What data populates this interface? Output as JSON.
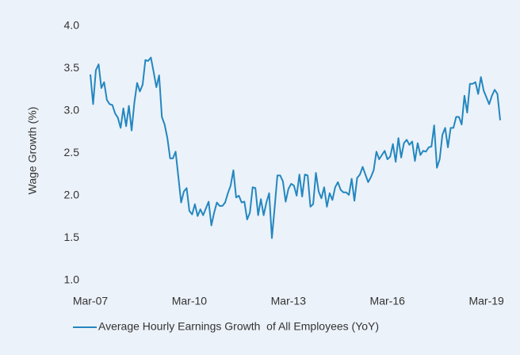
{
  "chart_data": {
    "type": "line",
    "y_label": "Wage Growth (%)",
    "categories": [
      "Mar-07",
      null,
      null,
      null,
      null,
      null,
      null,
      null,
      null,
      null,
      null,
      null,
      null,
      null,
      null,
      null,
      null,
      null,
      null,
      null,
      null,
      null,
      null,
      null,
      null,
      null,
      null,
      null,
      null,
      null,
      null,
      null,
      null,
      null,
      null,
      null,
      "Mar-10",
      null,
      null,
      null,
      null,
      null,
      null,
      null,
      null,
      null,
      null,
      null,
      null,
      null,
      null,
      null,
      null,
      null,
      null,
      null,
      null,
      null,
      null,
      null,
      null,
      null,
      null,
      null,
      null,
      null,
      null,
      null,
      null,
      null,
      null,
      null,
      "Mar-13",
      null,
      null,
      null,
      null,
      null,
      null,
      null,
      null,
      null,
      null,
      null,
      null,
      null,
      null,
      null,
      null,
      null,
      null,
      null,
      null,
      null,
      null,
      null,
      null,
      null,
      null,
      null,
      null,
      null,
      null,
      null,
      null,
      null,
      null,
      null,
      "Mar-16",
      null,
      null,
      null,
      null,
      null,
      null,
      null,
      null,
      null,
      null,
      null,
      null,
      null,
      null,
      null,
      null,
      null,
      null,
      null,
      null,
      null,
      null,
      null,
      null,
      null,
      null,
      null,
      null,
      null,
      null,
      null,
      null,
      null,
      null,
      null,
      "Mar-19",
      null,
      null,
      null,
      null,
      null
    ],
    "series": [
      {
        "name": "Average Hourly Earnings Growth  of All Employees (YoY)",
        "color": "#2387c0",
        "values": [
          3.43,
          3.08,
          3.48,
          3.55,
          3.27,
          3.34,
          3.13,
          3.08,
          3.07,
          2.97,
          2.92,
          2.8,
          3.03,
          2.82,
          3.06,
          2.77,
          3.1,
          3.33,
          3.23,
          3.31,
          3.6,
          3.59,
          3.63,
          3.46,
          3.28,
          3.42,
          2.93,
          2.84,
          2.68,
          2.44,
          2.44,
          2.52,
          2.22,
          1.92,
          2.05,
          2.09,
          1.82,
          1.78,
          1.9,
          1.76,
          1.84,
          1.77,
          1.85,
          1.93,
          1.65,
          1.8,
          1.92,
          1.88,
          1.88,
          1.92,
          2.03,
          2.12,
          2.3,
          1.98,
          2.0,
          1.92,
          1.93,
          1.72,
          1.8,
          2.1,
          2.09,
          1.77,
          1.96,
          1.77,
          1.92,
          2.03,
          1.5,
          1.86,
          2.24,
          2.24,
          2.17,
          1.93,
          2.08,
          2.14,
          2.12,
          2.0,
          2.25,
          1.99,
          2.25,
          2.24,
          1.87,
          1.9,
          2.27,
          2.05,
          1.97,
          2.1,
          1.87,
          2.03,
          1.95,
          2.1,
          2.16,
          2.07,
          2.04,
          2.04,
          2.01,
          2.2,
          1.94,
          2.21,
          2.25,
          2.34,
          2.25,
          2.16,
          2.22,
          2.3,
          2.52,
          2.43,
          2.48,
          2.53,
          2.43,
          2.46,
          2.61,
          2.4,
          2.68,
          2.45,
          2.62,
          2.66,
          2.6,
          2.64,
          2.41,
          2.62,
          2.48,
          2.53,
          2.52,
          2.57,
          2.58,
          2.83,
          2.33,
          2.43,
          2.72,
          2.8,
          2.57,
          2.8,
          2.8,
          2.93,
          2.93,
          2.84,
          3.18,
          2.98,
          3.32,
          3.32,
          3.34,
          3.2,
          3.4,
          3.24,
          3.16,
          3.08,
          3.18,
          3.25,
          3.2,
          2.89
        ]
      }
    ],
    "ylim": [
      1.0,
      4.0
    ],
    "yticks": [
      {
        "value": 1.0,
        "label": "1.0"
      },
      1.5,
      {
        "value": 2.0,
        "label": "2.0"
      },
      2.5,
      {
        "value": 3.0,
        "label": "3.0"
      },
      3.5,
      {
        "value": 4.0,
        "label": "4.0"
      }
    ],
    "grid": false,
    "legend": "bottom"
  }
}
